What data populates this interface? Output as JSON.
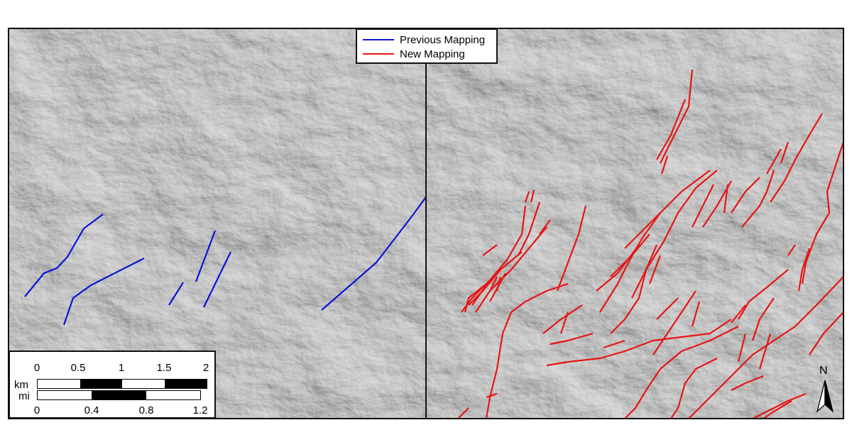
{
  "legend": {
    "items": [
      {
        "label": "Previous Mapping",
        "color": "#0a14d8"
      },
      {
        "label": "New Mapping",
        "color": "#e81414"
      }
    ]
  },
  "scale_bar": {
    "km_label": "km",
    "mi_label": "mi",
    "km_ticks": [
      "0",
      "0.5",
      "1",
      "1.5",
      "2"
    ],
    "mi_ticks": [
      "0",
      "0.4",
      "0.8",
      "1.2"
    ]
  },
  "north_arrow": {
    "label": "N"
  },
  "panels": [
    {
      "name": "left",
      "content": "hillshade with previous mapping"
    },
    {
      "name": "right",
      "content": "hillshade with new mapping"
    }
  ],
  "colors": {
    "hillshade": "#b9b9b9",
    "frame": "#111111"
  }
}
